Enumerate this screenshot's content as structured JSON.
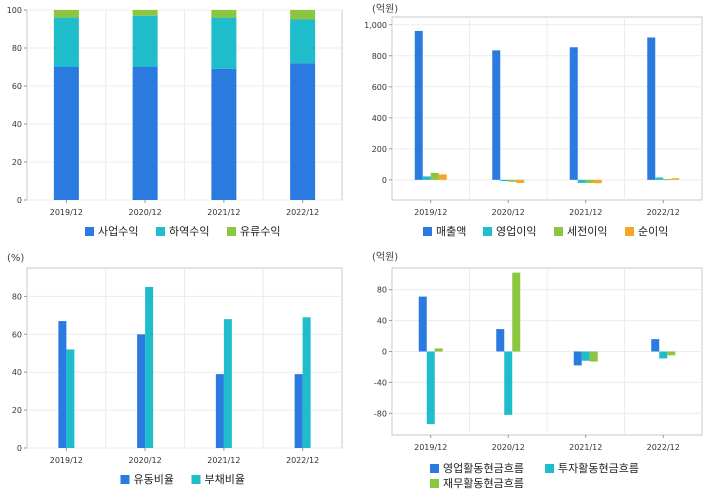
{
  "chart_data": [
    {
      "type": "bar",
      "stacked": true,
      "unit": "",
      "categories": [
        "2019/12",
        "2020/12",
        "2021/12",
        "2022/12"
      ],
      "series": [
        {
          "name": "사업수익",
          "color": "#2b7ae0",
          "values": [
            70,
            70,
            69,
            72
          ]
        },
        {
          "name": "하역수익",
          "color": "#1fbccc",
          "values": [
            26,
            27,
            27,
            23
          ]
        },
        {
          "name": "유류수익",
          "color": "#8cc540",
          "values": [
            4,
            3,
            4,
            5
          ]
        }
      ],
      "ylim": [
        0,
        100
      ],
      "yticks": [
        "0",
        "20",
        "40",
        "60",
        "80",
        "100"
      ],
      "grid": true,
      "legend": "bottom"
    },
    {
      "type": "bar",
      "unit": "(억원)",
      "categories": [
        "2019/12",
        "2020/12",
        "2021/12",
        "2022/12"
      ],
      "series": [
        {
          "name": "매출액",
          "color": "#2b7ae0",
          "values": [
            960,
            835,
            855,
            918
          ]
        },
        {
          "name": "영업이익",
          "color": "#1fbccc",
          "values": [
            22,
            -8,
            -20,
            15
          ]
        },
        {
          "name": "세전이익",
          "color": "#8cc540",
          "values": [
            45,
            -12,
            -20,
            5
          ]
        },
        {
          "name": "순이익",
          "color": "#f5a623",
          "values": [
            35,
            -20,
            -22,
            10
          ]
        }
      ],
      "ylim": [
        -130,
        1050
      ],
      "yticks": [
        "0",
        "200",
        "400",
        "600",
        "800",
        "1,000"
      ],
      "ytick_values": [
        0,
        200,
        400,
        600,
        800,
        1000
      ],
      "grid": true,
      "legend": "bottom"
    },
    {
      "type": "bar",
      "unit": "(%)",
      "categories": [
        "2019/12",
        "2020/12",
        "2021/12",
        "2022/12"
      ],
      "series": [
        {
          "name": "유동비율",
          "color": "#2b7ae0",
          "values": [
            67,
            60,
            39,
            39
          ]
        },
        {
          "name": "부채비율",
          "color": "#1fbccc",
          "values": [
            52,
            85,
            68,
            69
          ]
        }
      ],
      "ylim": [
        0,
        95
      ],
      "yticks": [
        "0",
        "20",
        "40",
        "60",
        "80"
      ],
      "ytick_values": [
        0,
        20,
        40,
        60,
        80
      ],
      "grid": true,
      "legend": "bottom"
    },
    {
      "type": "bar",
      "unit": "(억원)",
      "categories": [
        "2019/12",
        "2020/12",
        "2021/12",
        "2022/12"
      ],
      "series": [
        {
          "name": "영업활동현금흐름",
          "color": "#2b7ae0",
          "values": [
            71,
            29,
            -18,
            16
          ]
        },
        {
          "name": "투자활동현금흐름",
          "color": "#1fbccc",
          "values": [
            -94,
            -82,
            -12,
            -9
          ]
        },
        {
          "name": "재무활동현금흐름",
          "color": "#8cc540",
          "values": [
            4,
            102,
            -13,
            -5
          ]
        }
      ],
      "ylim": [
        -108,
        108
      ],
      "yticks": [
        "-80",
        "-40",
        "0",
        "40",
        "80"
      ],
      "ytick_values": [
        -80,
        -40,
        0,
        40,
        80
      ],
      "grid": true,
      "legend": "bottom"
    }
  ]
}
